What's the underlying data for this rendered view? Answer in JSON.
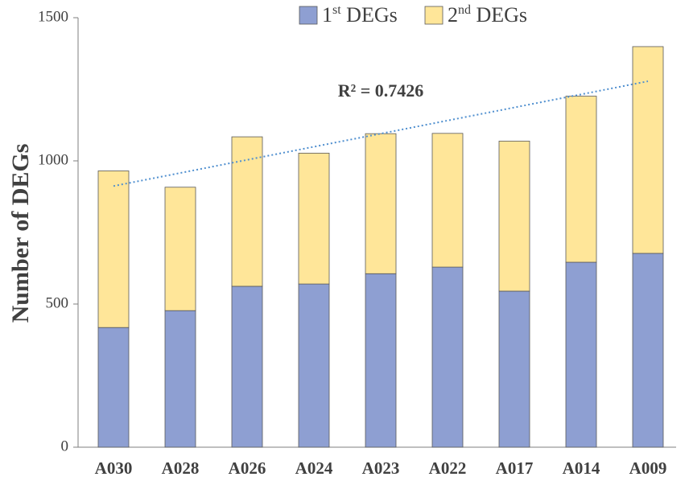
{
  "chart_data": {
    "type": "bar",
    "stacked": true,
    "categories": [
      "A030",
      "A028",
      "A026",
      "A024",
      "A023",
      "A022",
      "A017",
      "A014",
      "A009"
    ],
    "series": [
      {
        "name": "1st DEGs",
        "name_base": "1",
        "name_sup": "st",
        "name_rest": " DEGs",
        "color": "#8e9fd2",
        "values": [
          418,
          477,
          562,
          570,
          606,
          629,
          545,
          646,
          677
        ]
      },
      {
        "name": "2nd DEGs",
        "name_base": "2",
        "name_sup": "nd",
        "name_rest": " DEGs",
        "color": "#ffe699",
        "values": [
          547,
          431,
          522,
          457,
          489,
          467,
          524,
          580,
          722
        ]
      }
    ],
    "trendline": {
      "type": "linear",
      "start": 912,
      "end": 1278,
      "color": "#4f8fcf"
    },
    "annotation": "R² = 0.7426",
    "ylabel": "Number of DEGs",
    "xlabel": "",
    "ylim": [
      0,
      1500
    ],
    "yticks": [
      0,
      500,
      1000,
      1500
    ],
    "legend": "top-center",
    "grid": false
  }
}
